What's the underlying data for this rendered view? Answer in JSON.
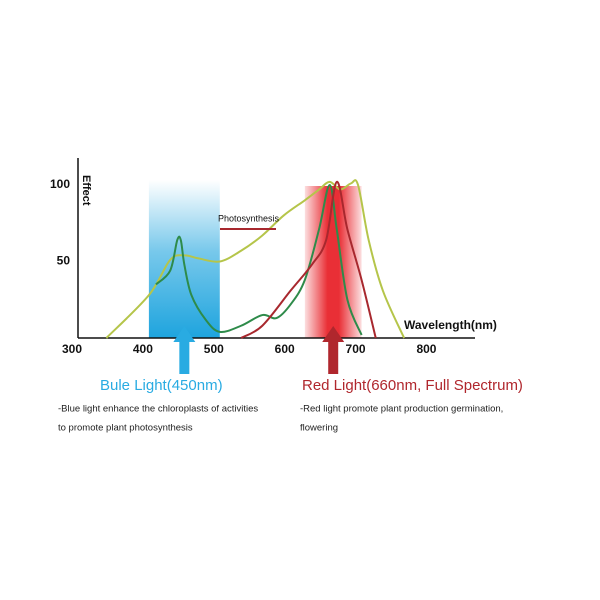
{
  "chart_data": {
    "type": "line",
    "y_label": "Effect",
    "x_label": "Wavelength(nm)",
    "xlim": [
      300,
      860
    ],
    "ylim": [
      0,
      115
    ],
    "xticks": [
      300,
      400,
      500,
      600,
      700,
      800
    ],
    "yticks": [
      50,
      100
    ],
    "bands": [
      {
        "from": 400,
        "to": 500,
        "color": "#1ea4de"
      },
      {
        "from": 620,
        "to": 700,
        "color": "#e8242b"
      }
    ],
    "series": [
      {
        "color": "#b5c54a",
        "x": [
          340,
          400,
          430,
          450,
          470,
          500,
          530,
          560,
          590,
          620,
          640,
          655,
          670,
          685,
          695,
          710,
          730,
          760
        ],
        "values": [
          0,
          28,
          51,
          54,
          52,
          50,
          57,
          67,
          80,
          90,
          97,
          102,
          97,
          101,
          100,
          64,
          31,
          0
        ]
      },
      {
        "color": "#2e8b4a",
        "x": [
          410,
          430,
          440,
          445,
          450,
          460,
          480,
          500,
          530,
          560,
          580,
          600,
          620,
          640,
          655,
          665,
          680,
          700
        ],
        "values": [
          35,
          44,
          64,
          64,
          48,
          28,
          12,
          4,
          8,
          15,
          13,
          22,
          38,
          71,
          100,
          71,
          25,
          2
        ]
      },
      {
        "name": "Photosynthesis",
        "color": "#a8282e",
        "x": [
          530,
          560,
          600,
          630,
          650,
          665,
          680,
          700,
          720
        ],
        "values": [
          0,
          8,
          31,
          48,
          64,
          102,
          71,
          38,
          0
        ]
      }
    ],
    "annotations": [
      {
        "x": 450,
        "color": "#29abe2",
        "label": "Bule Light(450nm)",
        "text": [
          "-Blue light enhance the chloroplasts of activities",
          "to promote plant photosynthesis"
        ]
      },
      {
        "x": 660,
        "color": "#b0272d",
        "label": "Red Light(660nm, Full Spectrum)",
        "text": [
          "-Red light promote plant production germination,",
          "flowering"
        ]
      }
    ]
  }
}
